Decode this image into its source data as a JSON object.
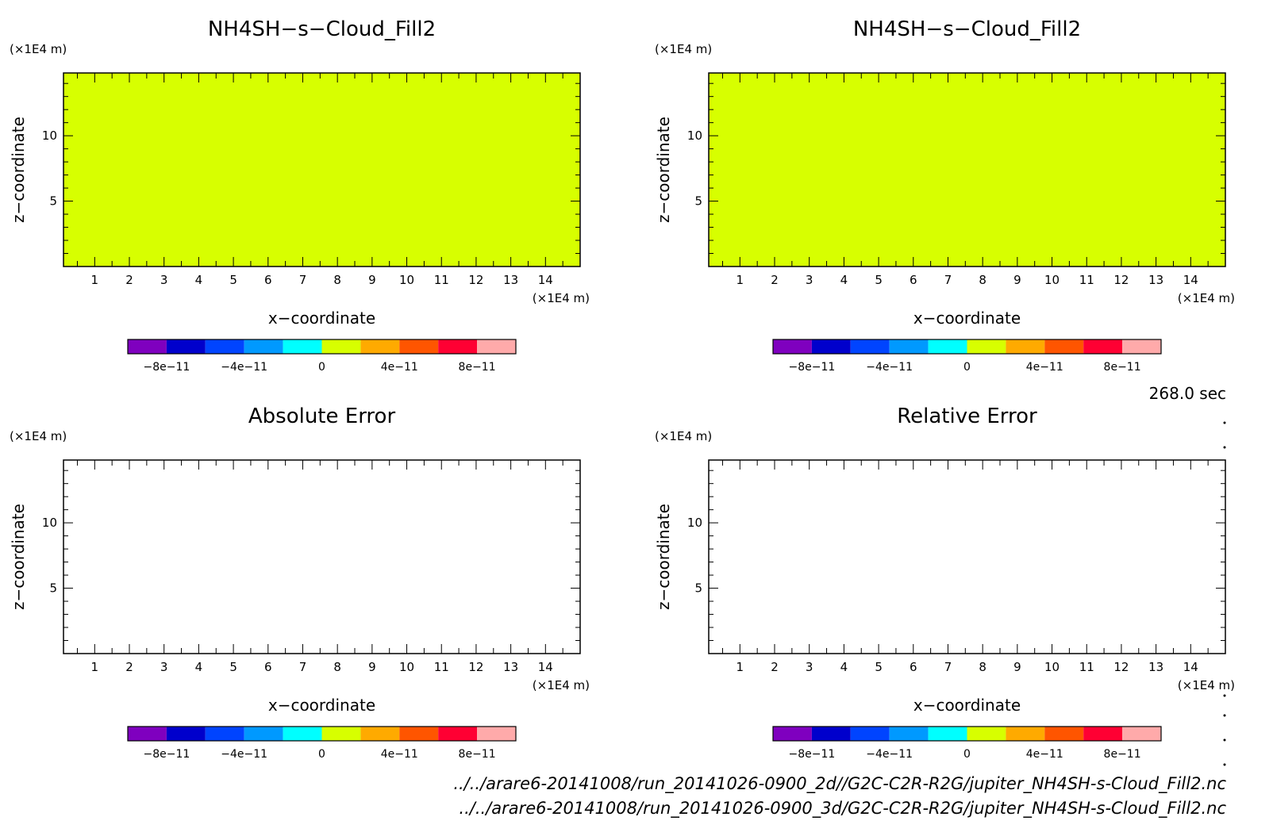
{
  "chart_data": [
    {
      "type": "heatmap",
      "title": "NH4SH−s−Cloud_Fill2",
      "xlabel": "x−coordinate",
      "ylabel": "z−coordinate",
      "x_unit": "(×1E4 m)",
      "y_unit": "(×1E4 m)",
      "x_ticks": [
        "1",
        "2",
        "3",
        "4",
        "5",
        "6",
        "7",
        "8",
        "9",
        "10",
        "11",
        "12",
        "13",
        "14"
      ],
      "y_ticks": [
        "5",
        "10"
      ],
      "xlim": [
        0.1,
        15
      ],
      "ylim": [
        0,
        14.8
      ],
      "field": "uniform",
      "field_value": 0,
      "fill_color": "#d7ff00",
      "colorbar": {
        "levels": [
          -1e-10,
          -8e-11,
          -6e-11,
          -4e-11,
          -2e-11,
          0,
          2e-11,
          4e-11,
          6e-11,
          8e-11,
          1e-10
        ],
        "labels": [
          "−8e−11",
          "−4e−11",
          "0",
          "4e−11",
          "8e−11"
        ],
        "label_values": [
          -8e-11,
          -4e-11,
          0,
          4e-11,
          8e-11
        ]
      }
    },
    {
      "type": "heatmap",
      "title": "NH4SH−s−Cloud_Fill2",
      "xlabel": "x−coordinate",
      "ylabel": "z−coordinate",
      "x_unit": "(×1E4 m)",
      "y_unit": "(×1E4 m)",
      "x_ticks": [
        "1",
        "2",
        "3",
        "4",
        "5",
        "6",
        "7",
        "8",
        "9",
        "10",
        "11",
        "12",
        "13",
        "14"
      ],
      "y_ticks": [
        "5",
        "10"
      ],
      "xlim": [
        0.1,
        15
      ],
      "ylim": [
        0,
        14.8
      ],
      "field": "uniform",
      "field_value": 0,
      "fill_color": "#d7ff00",
      "colorbar": {
        "levels": [
          -1e-10,
          -8e-11,
          -6e-11,
          -4e-11,
          -2e-11,
          0,
          2e-11,
          4e-11,
          6e-11,
          8e-11,
          1e-10
        ],
        "labels": [
          "−8e−11",
          "−4e−11",
          "0",
          "4e−11",
          "8e−11"
        ],
        "label_values": [
          -8e-11,
          -4e-11,
          0,
          4e-11,
          8e-11
        ]
      }
    },
    {
      "type": "heatmap",
      "title": "Absolute Error",
      "xlabel": "x−coordinate",
      "ylabel": "z−coordinate",
      "x_unit": "(×1E4 m)",
      "y_unit": "(×1E4 m)",
      "x_ticks": [
        "1",
        "2",
        "3",
        "4",
        "5",
        "6",
        "7",
        "8",
        "9",
        "10",
        "11",
        "12",
        "13",
        "14"
      ],
      "y_ticks": [
        "5",
        "10"
      ],
      "xlim": [
        0.1,
        15
      ],
      "ylim": [
        0,
        14.8
      ],
      "field": "empty",
      "fill_color": "#ffffff",
      "colorbar": {
        "levels": [
          -1e-10,
          -8e-11,
          -6e-11,
          -4e-11,
          -2e-11,
          0,
          2e-11,
          4e-11,
          6e-11,
          8e-11,
          1e-10
        ],
        "labels": [
          "−8e−11",
          "−4e−11",
          "0",
          "4e−11",
          "8e−11"
        ],
        "label_values": [
          -8e-11,
          -4e-11,
          0,
          4e-11,
          8e-11
        ]
      }
    },
    {
      "type": "heatmap",
      "title": "Relative Error",
      "xlabel": "x−coordinate",
      "ylabel": "z−coordinate",
      "x_unit": "(×1E4 m)",
      "y_unit": "(×1E4 m)",
      "x_ticks": [
        "1",
        "2",
        "3",
        "4",
        "5",
        "6",
        "7",
        "8",
        "9",
        "10",
        "11",
        "12",
        "13",
        "14"
      ],
      "y_ticks": [
        "5",
        "10"
      ],
      "xlim": [
        0.1,
        15
      ],
      "ylim": [
        0,
        14.8
      ],
      "field": "empty",
      "fill_color": "#ffffff",
      "colorbar": {
        "levels": [
          -1e-10,
          -8e-11,
          -6e-11,
          -4e-11,
          -2e-11,
          0,
          2e-11,
          4e-11,
          6e-11,
          8e-11,
          1e-10
        ],
        "labels": [
          "−8e−11",
          "−4e−11",
          "0",
          "4e−11",
          "8e−11"
        ],
        "label_values": [
          -8e-11,
          -4e-11,
          0,
          4e-11,
          8e-11
        ]
      }
    }
  ],
  "colorbar_colors": [
    "#7f00bf",
    "#0000cc",
    "#0044ff",
    "#0099ff",
    "#00ffff",
    "#d7ff00",
    "#ffaa00",
    "#ff5500",
    "#ff0033",
    "#ffaaaa"
  ],
  "time_label": "268.0 sec",
  "file_paths": [
    "../../arare6-20141008/run_20141026-0900_2d//G2C-C2R-R2G/jupiter_NH4SH-s-Cloud_Fill2.nc",
    "../../arare6-20141008/run_20141026-0900_3d/G2C-C2R-R2G/jupiter_NH4SH-s-Cloud_Fill2.nc"
  ]
}
